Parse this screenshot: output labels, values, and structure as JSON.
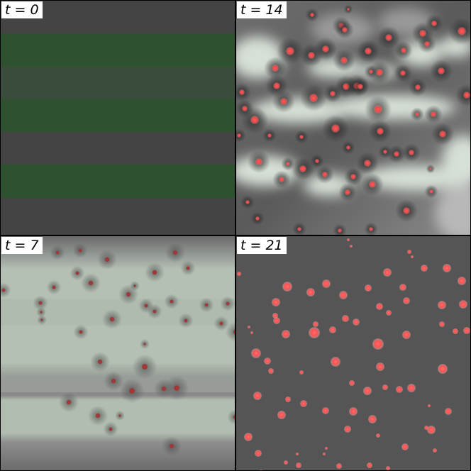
{
  "panels": [
    {
      "label": "t = 0"
    },
    {
      "label": "t = 14"
    },
    {
      "label": "t = 7"
    },
    {
      "label": "t = 21"
    }
  ],
  "colors": {
    "border": "#000000",
    "dark_gray": "#434343",
    "green_stripe": "#2c5230",
    "dark_stripe": "#3c4b3d",
    "pale_green": "#d3ddd3",
    "mid_gray": "#555555",
    "cell_red": "#ff4f4f",
    "cell_dark_red": "#c23a3a"
  }
}
